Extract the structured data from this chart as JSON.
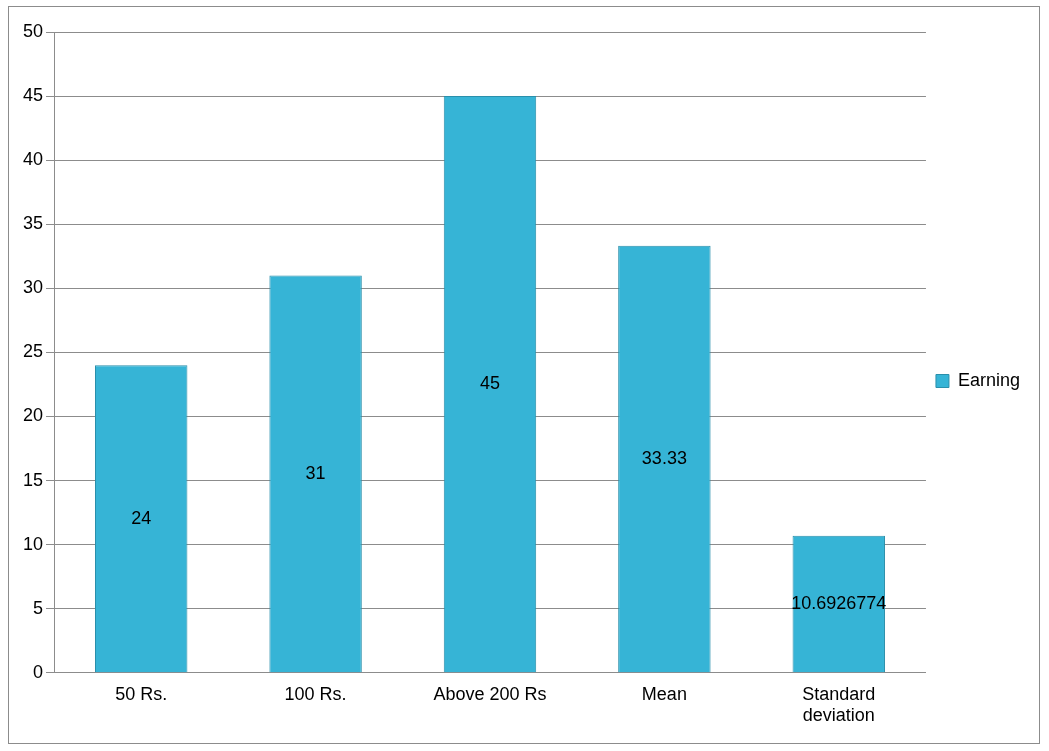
{
  "chart_data": {
    "type": "bar",
    "categories": [
      "50 Rs.",
      "100 Rs.",
      "Above 200 Rs",
      "Mean",
      "Standard deviation"
    ],
    "series": [
      {
        "name": "Earning",
        "color": "#36b4d6",
        "values": [
          24,
          31,
          45,
          33.33,
          10.6926774
        ]
      }
    ],
    "ylim": [
      0,
      50
    ],
    "yticks": [
      0,
      5,
      10,
      15,
      20,
      25,
      30,
      35,
      40,
      45,
      50
    ],
    "grid": "y",
    "legend": "right",
    "data_labels": true
  }
}
